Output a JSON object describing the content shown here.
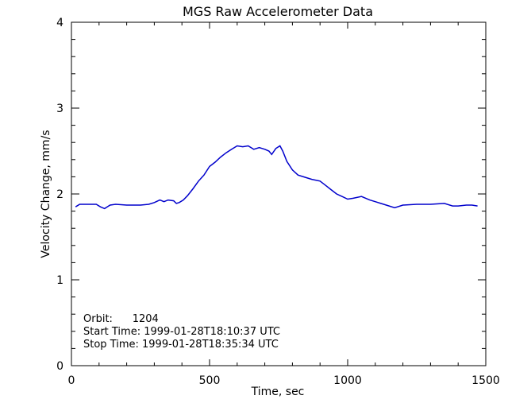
{
  "chart_data": {
    "type": "line",
    "title": "MGS Raw Accelerometer Data",
    "xlabel": "Time, sec",
    "ylabel": "Velocity Change, mm/s",
    "xlim": [
      0,
      1500
    ],
    "ylim": [
      0,
      4
    ],
    "xticks": [
      0,
      500,
      1000,
      1500
    ],
    "yticks": [
      0,
      1,
      2,
      3,
      4
    ],
    "grid": false,
    "line_color": "#0000cc",
    "annotations": [
      "Orbit:      1204",
      "Start Time: 1999-01-28T18:10:37 UTC",
      "Stop Time: 1999-01-28T18:35:34 UTC"
    ],
    "series": [
      {
        "x": [
          15,
          30,
          60,
          90,
          105,
          120,
          125,
          140,
          160,
          200,
          250,
          280,
          300,
          320,
          335,
          350,
          370,
          380,
          390,
          405,
          420,
          440,
          460,
          480,
          500,
          520,
          540,
          560,
          580,
          600,
          620,
          640,
          660,
          680,
          700,
          715,
          725,
          740,
          755,
          765,
          780,
          800,
          820,
          840,
          870,
          900,
          920,
          940,
          960,
          980,
          1000,
          1020,
          1050,
          1080,
          1100,
          1120,
          1150,
          1170,
          1200,
          1250,
          1300,
          1350,
          1380,
          1400,
          1430,
          1450,
          1470
        ],
        "y": [
          1.85,
          1.88,
          1.88,
          1.88,
          1.85,
          1.83,
          1.84,
          1.87,
          1.88,
          1.87,
          1.87,
          1.88,
          1.9,
          1.93,
          1.91,
          1.93,
          1.92,
          1.89,
          1.9,
          1.93,
          1.98,
          2.06,
          2.15,
          2.22,
          2.32,
          2.37,
          2.43,
          2.48,
          2.52,
          2.56,
          2.55,
          2.56,
          2.52,
          2.54,
          2.52,
          2.5,
          2.46,
          2.53,
          2.56,
          2.5,
          2.38,
          2.28,
          2.22,
          2.2,
          2.17,
          2.15,
          2.1,
          2.05,
          2.0,
          1.97,
          1.94,
          1.95,
          1.97,
          1.93,
          1.91,
          1.89,
          1.86,
          1.84,
          1.87,
          1.88,
          1.88,
          1.89,
          1.86,
          1.86,
          1.87,
          1.87,
          1.86
        ]
      }
    ]
  }
}
